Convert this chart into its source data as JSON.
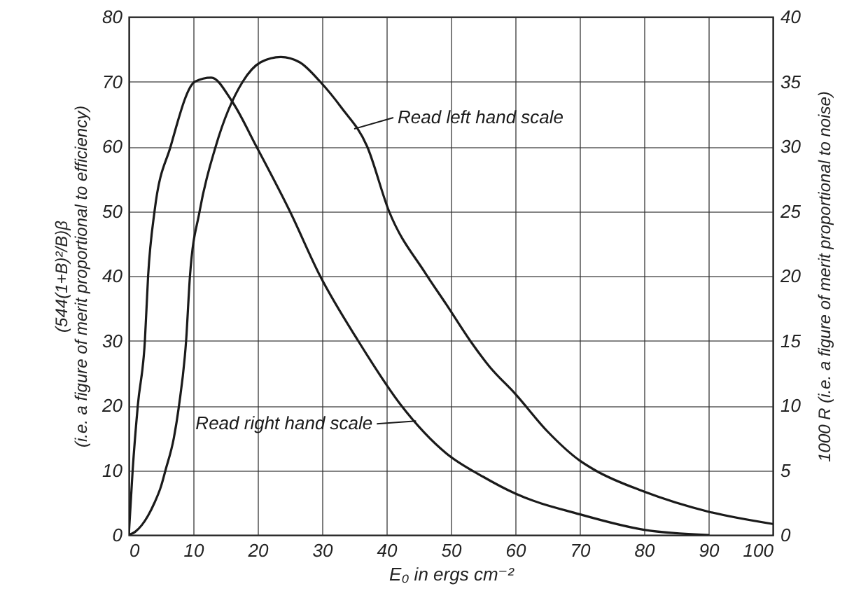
{
  "chart_data": {
    "type": "line",
    "xlabel": "E₀ in ergs cm⁻²",
    "ylabel": "(544(1+B)²/B)β\n(i.e. a figure of merit proportional to efficiency)",
    "y2label": "1000 R (i.e. a figure of merit proportional to noise)",
    "series": [
      {
        "color": "#1a1a1a",
        "x": [
          0,
          1,
          2,
          3,
          4,
          5,
          5.7,
          7,
          7.8,
          8.9,
          9.5,
          11,
          13.5,
          17.7,
          20.5,
          23.6,
          26.5,
          29.7,
          33,
          37,
          40.4,
          46,
          49.3,
          53,
          56,
          60,
          65,
          70,
          72.4,
          80,
          90,
          100
        ],
        "values": [
          0,
          0.5,
          1.5,
          3,
          5,
          7.5,
          10,
          15,
          20,
          30,
          40,
          50,
          60,
          70,
          73,
          73.8,
          73,
          70,
          66,
          60,
          50,
          40.5,
          35.6,
          30,
          26,
          21.8,
          16,
          11.5,
          10,
          6.7,
          3.6,
          1.7
        ]
      },
      {
        "color": "#1a1a1a",
        "axis": "y2",
        "x": [
          0,
          0.6,
          1.4,
          2.5,
          3,
          4,
          6.5,
          10.3,
          12.8,
          16,
          19.8,
          25,
          29.7,
          35.6,
          42.3,
          49.3,
          55,
          60,
          70,
          80,
          90
        ],
        "values": [
          0,
          5,
          10,
          15,
          20,
          25,
          30,
          35,
          35.3,
          33.5,
          30,
          25,
          20,
          15,
          10,
          6.3,
          4.5,
          3.2,
          1.6,
          0.4,
          0
        ]
      }
    ],
    "xlim": [
      0,
      100
    ],
    "xticks": [
      0,
      10,
      20,
      30,
      40,
      50,
      60,
      70,
      80,
      90,
      100
    ],
    "ylim": [
      0,
      80
    ],
    "yticks": [
      0,
      10,
      20,
      30,
      40,
      50,
      60,
      70,
      80
    ],
    "y2lim": [
      0,
      40
    ],
    "y2ticks": [
      0,
      5,
      10,
      15,
      20,
      25,
      30,
      35,
      40
    ],
    "grid": true,
    "marker": "none",
    "line_style": "solid",
    "annotations": [
      {
        "text": "Read left hand scale",
        "x": 35,
        "y": 62.7
      },
      {
        "text": "Read right hand scale",
        "x": 44.6,
        "y": 17.6
      }
    ]
  }
}
